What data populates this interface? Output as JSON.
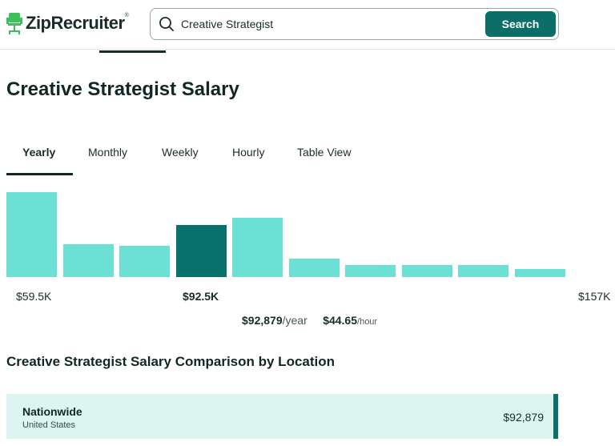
{
  "header": {
    "brand": "ZipRecruiter",
    "brand_mark": "®",
    "logo_icon": "chair-logo-icon",
    "search_value": "Creative Strategist",
    "search_button": "Search"
  },
  "page": {
    "title": "Creative Strategist Salary"
  },
  "tabs": [
    {
      "label": "Yearly",
      "active": true
    },
    {
      "label": "Monthly",
      "active": false
    },
    {
      "label": "Weekly",
      "active": false
    },
    {
      "label": "Hourly",
      "active": false
    },
    {
      "label": "Table View",
      "active": false
    }
  ],
  "chart_data": {
    "type": "bar",
    "values": [
      100,
      39,
      37,
      61,
      70,
      22,
      14,
      14,
      14,
      9
    ],
    "highlight_index": 3,
    "axis_labels": {
      "min": "$59.5K",
      "mid": "$92.5K",
      "max": "$157K"
    },
    "colors": {
      "bar": "#6de0d6",
      "highlight": "#08716b"
    }
  },
  "average": {
    "yearly": "$92,879",
    "yearly_unit": "/year",
    "hourly": "$44.65",
    "hourly_unit": "/hour"
  },
  "comparison": {
    "title": "Creative Strategist Salary Comparison by Location",
    "rows": [
      {
        "name": "Nationwide",
        "sub": "United States",
        "value": "$92,879",
        "share": 1.0
      }
    ]
  }
}
